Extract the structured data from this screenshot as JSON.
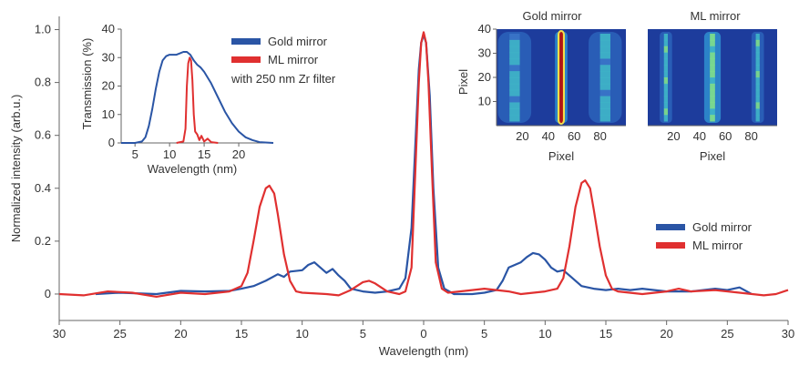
{
  "chart_data": [
    {
      "id": "main",
      "type": "line",
      "xlabel": "Wavelength (nm)",
      "ylabel": "Normalized intensity (arb.u.)",
      "xlim": [
        -30,
        30
      ],
      "ylim": [
        -0.1,
        1.05
      ],
      "x_note": "signed position along dispersion axis; printed tick labels are absolute values",
      "x_tick_labels": [
        "30",
        "25",
        "20",
        "15",
        "10",
        "5",
        "0",
        "5",
        "10",
        "15",
        "20",
        "25",
        "30"
      ],
      "y_tick_labels": [
        "0",
        "0.2",
        "0.4",
        "0.6",
        "0.8",
        "1.0"
      ],
      "legend_position": "right",
      "grid": false,
      "series": [
        {
          "name": "Gold mirror",
          "color": "#2a55a5",
          "points": [
            [
              -27,
              0
            ],
            [
              -25,
              0.005
            ],
            [
              -22,
              0
            ],
            [
              -20,
              0.012
            ],
            [
              -18,
              0.01
            ],
            [
              -16,
              0.012
            ],
            [
              -15,
              0.02
            ],
            [
              -14,
              0.03
            ],
            [
              -13,
              0.05
            ],
            [
              -12,
              0.075
            ],
            [
              -11.5,
              0.065
            ],
            [
              -11,
              0.085
            ],
            [
              -10,
              0.09
            ],
            [
              -9.5,
              0.11
            ],
            [
              -9,
              0.12
            ],
            [
              -8.5,
              0.1
            ],
            [
              -8,
              0.08
            ],
            [
              -7.5,
              0.095
            ],
            [
              -7,
              0.07
            ],
            [
              -6.5,
              0.05
            ],
            [
              -6,
              0.02
            ],
            [
              -5,
              0.01
            ],
            [
              -4,
              0.005
            ],
            [
              -3,
              0.01
            ],
            [
              -2,
              0.02
            ],
            [
              -1.5,
              0.06
            ],
            [
              -1,
              0.25
            ],
            [
              -0.7,
              0.55
            ],
            [
              -0.4,
              0.85
            ],
            [
              -0.2,
              0.95
            ],
            [
              0,
              0.98
            ],
            [
              0.2,
              0.95
            ],
            [
              0.5,
              0.75
            ],
            [
              0.8,
              0.4
            ],
            [
              1.2,
              0.1
            ],
            [
              1.7,
              0.02
            ],
            [
              2.5,
              0
            ],
            [
              4,
              0
            ],
            [
              5,
              0.005
            ],
            [
              6,
              0.015
            ],
            [
              6.5,
              0.05
            ],
            [
              7,
              0.1
            ],
            [
              7.5,
              0.11
            ],
            [
              8,
              0.12
            ],
            [
              8.5,
              0.14
            ],
            [
              9,
              0.155
            ],
            [
              9.5,
              0.15
            ],
            [
              10,
              0.13
            ],
            [
              10.5,
              0.1
            ],
            [
              11,
              0.085
            ],
            [
              11.5,
              0.09
            ],
            [
              12,
              0.07
            ],
            [
              13,
              0.03
            ],
            [
              14,
              0.02
            ],
            [
              15,
              0.015
            ],
            [
              16,
              0.02
            ],
            [
              17,
              0.015
            ],
            [
              18,
              0.02
            ],
            [
              20,
              0.01
            ],
            [
              22,
              0.01
            ],
            [
              24,
              0.02
            ],
            [
              25,
              0.015
            ],
            [
              26,
              0.025
            ],
            [
              27,
              0
            ]
          ]
        },
        {
          "name": "ML mirror",
          "color": "#e03030",
          "points": [
            [
              -30,
              0
            ],
            [
              -28,
              -0.005
            ],
            [
              -26,
              0.01
            ],
            [
              -24,
              0.005
            ],
            [
              -22,
              -0.01
            ],
            [
              -20,
              0.005
            ],
            [
              -18,
              0
            ],
            [
              -16,
              0.01
            ],
            [
              -15,
              0.03
            ],
            [
              -14.5,
              0.08
            ],
            [
              -14,
              0.2
            ],
            [
              -13.5,
              0.33
            ],
            [
              -13,
              0.4
            ],
            [
              -12.7,
              0.41
            ],
            [
              -12.3,
              0.38
            ],
            [
              -12,
              0.3
            ],
            [
              -11.5,
              0.15
            ],
            [
              -11,
              0.05
            ],
            [
              -10.5,
              0.01
            ],
            [
              -10,
              0.005
            ],
            [
              -8,
              0
            ],
            [
              -7,
              -0.005
            ],
            [
              -6,
              0.015
            ],
            [
              -5,
              0.045
            ],
            [
              -4.5,
              0.05
            ],
            [
              -4,
              0.04
            ],
            [
              -3,
              0.01
            ],
            [
              -2,
              0
            ],
            [
              -1.5,
              0.01
            ],
            [
              -1,
              0.1
            ],
            [
              -0.7,
              0.45
            ],
            [
              -0.4,
              0.8
            ],
            [
              -0.2,
              0.95
            ],
            [
              0,
              0.99
            ],
            [
              0.2,
              0.95
            ],
            [
              0.4,
              0.8
            ],
            [
              0.7,
              0.45
            ],
            [
              1,
              0.12
            ],
            [
              1.5,
              0.02
            ],
            [
              2,
              0.005
            ],
            [
              4,
              0.015
            ],
            [
              5,
              0.02
            ],
            [
              6,
              0.015
            ],
            [
              7,
              0.01
            ],
            [
              8,
              0
            ],
            [
              10,
              0.01
            ],
            [
              11,
              0.02
            ],
            [
              11.5,
              0.06
            ],
            [
              12,
              0.18
            ],
            [
              12.5,
              0.33
            ],
            [
              13,
              0.42
            ],
            [
              13.3,
              0.43
            ],
            [
              13.7,
              0.4
            ],
            [
              14,
              0.32
            ],
            [
              14.5,
              0.18
            ],
            [
              15,
              0.07
            ],
            [
              15.5,
              0.02
            ],
            [
              16,
              0.01
            ],
            [
              18,
              0
            ],
            [
              20,
              0.01
            ],
            [
              21,
              0.02
            ],
            [
              22,
              0.01
            ],
            [
              24,
              0.015
            ],
            [
              26,
              0.005
            ],
            [
              28,
              -0.005
            ],
            [
              29,
              0
            ],
            [
              30,
              0.015
            ]
          ]
        }
      ]
    },
    {
      "id": "inset-transmission",
      "type": "line",
      "xlabel": "Wavelength (nm)",
      "ylabel": "Transmission (%)",
      "xlim": [
        3,
        25
      ],
      "ylim": [
        0,
        40
      ],
      "x_tick_labels": [
        "5",
        "10",
        "15",
        "20"
      ],
      "y_tick_labels": [
        "0",
        "10",
        "20",
        "30",
        "40"
      ],
      "annotation": "with 250 nm Zr filter",
      "legend_position": "right",
      "series": [
        {
          "name": "Gold mirror",
          "color": "#2a55a5",
          "points": [
            [
              3,
              0
            ],
            [
              5,
              0
            ],
            [
              6,
              0.5
            ],
            [
              6.5,
              2
            ],
            [
              7,
              6
            ],
            [
              7.5,
              12
            ],
            [
              8,
              19
            ],
            [
              8.5,
              25
            ],
            [
              9,
              29
            ],
            [
              9.5,
              30.5
            ],
            [
              10,
              31
            ],
            [
              11,
              31
            ],
            [
              11.5,
              31.5
            ],
            [
              12,
              32
            ],
            [
              12.5,
              32
            ],
            [
              13,
              31
            ],
            [
              13.5,
              29
            ],
            [
              14,
              27.5
            ],
            [
              14.5,
              26.5
            ],
            [
              15,
              25
            ],
            [
              16,
              21
            ],
            [
              17,
              16
            ],
            [
              18,
              11
            ],
            [
              19,
              7
            ],
            [
              20,
              4
            ],
            [
              21,
              2
            ],
            [
              22,
              1
            ],
            [
              23,
              0.3
            ],
            [
              25,
              0
            ]
          ]
        },
        {
          "name": "ML mirror",
          "color": "#e03030",
          "points": [
            [
              11,
              0
            ],
            [
              12,
              0.5
            ],
            [
              12.3,
              5
            ],
            [
              12.5,
              20
            ],
            [
              12.7,
              28
            ],
            [
              12.9,
              30
            ],
            [
              13.1,
              29
            ],
            [
              13.3,
              22
            ],
            [
              13.5,
              10
            ],
            [
              13.7,
              4
            ],
            [
              14,
              3
            ],
            [
              14.3,
              1
            ],
            [
              14.6,
              2.5
            ],
            [
              15,
              0.5
            ],
            [
              15.5,
              1.5
            ],
            [
              16,
              0.3
            ],
            [
              17,
              0
            ]
          ]
        }
      ]
    },
    {
      "id": "gold-camera",
      "type": "heatmap",
      "title": "Gold mirror",
      "xlabel": "Pixel",
      "ylabel": "Pixel",
      "x_tick_labels": [
        "20",
        "40",
        "60",
        "80"
      ],
      "y_tick_labels": [
        "10",
        "20",
        "30",
        "40"
      ],
      "xlim": [
        0,
        100
      ],
      "ylim": [
        0,
        40
      ],
      "stripes": [
        {
          "center": 14,
          "width": 8,
          "intensity": 0.3
        },
        {
          "center": 50,
          "width": 3,
          "intensity": 1.0
        },
        {
          "center": 84,
          "width": 8,
          "intensity": 0.3
        }
      ]
    },
    {
      "id": "ml-camera",
      "type": "heatmap",
      "title": "ML mirror",
      "xlabel": "Pixel",
      "ylabel": "",
      "x_tick_labels": [
        "20",
        "40",
        "60",
        "80"
      ],
      "xlim": [
        0,
        100
      ],
      "ylim": [
        0,
        40
      ],
      "stripes": [
        {
          "center": 14,
          "width": 3,
          "intensity": 0.35
        },
        {
          "center": 50,
          "width": 4,
          "intensity": 0.65
        },
        {
          "center": 85,
          "width": 3,
          "intensity": 0.35
        }
      ]
    }
  ]
}
